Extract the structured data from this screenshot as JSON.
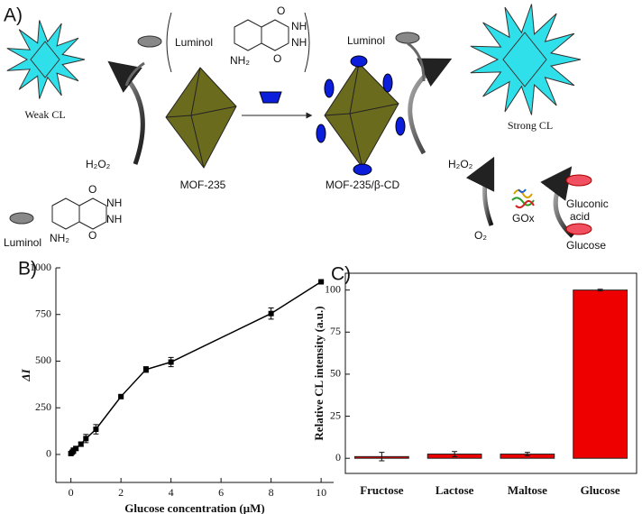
{
  "diagram": {
    "panel": "A)",
    "luminol_top_left": "Luminol",
    "luminol_top_right": "Luminol",
    "luminol_bottom": "Luminol",
    "weak": "Weak CL",
    "strong": "Strong CL",
    "h2o2_left": "H₂O₂",
    "h2o2_right": "H₂O₂",
    "mof": "MOF-235",
    "mof_cd": "MOF-235/β-CD",
    "o2": "O₂",
    "gox": "GOx",
    "gluconic_1": "Gluconic",
    "gluconic_2": "acid",
    "glucose": "Glucose",
    "structure_top": {
      "o1": "O",
      "nh1": "NH",
      "nh2": "NH",
      "o2": "O",
      "nh2_group": "NH₂"
    },
    "structure_bottom": {
      "o1": "O",
      "nh1": "NH",
      "nh2": "NH",
      "o2": "O",
      "nh2_group": "NH₂"
    }
  },
  "chart_data": [
    {
      "type": "line",
      "panel": "B)",
      "xlabel": "Glucose concentration (μM)",
      "ylabel": "ΔI",
      "color": "#000000",
      "x": [
        0,
        0.05,
        0.1,
        0.2,
        0.4,
        0.6,
        1,
        2,
        3,
        4,
        8,
        10
      ],
      "values": [
        5,
        12,
        20,
        32,
        55,
        85,
        135,
        310,
        455,
        495,
        755,
        925
      ],
      "errors": [
        10,
        10,
        15,
        10,
        12,
        22,
        25,
        5,
        15,
        25,
        30,
        5
      ],
      "xlim": [
        -0.6,
        10.5
      ],
      "xticks": [
        0,
        2,
        4,
        6,
        8,
        10
      ],
      "ylim": [
        -150,
        1000
      ],
      "yticks": [
        0,
        250,
        500,
        750,
        1000
      ]
    },
    {
      "type": "bar",
      "panel": "C)",
      "ylabel": "Relative CL intensity (a.u.)",
      "color": "#ee0000",
      "categories": [
        "Fructose",
        "Lactose",
        "Maltose",
        "Glucose"
      ],
      "values": [
        1,
        2.5,
        2.5,
        100
      ],
      "errors": [
        2.5,
        1.5,
        1,
        0.5
      ],
      "ylim": [
        -9,
        110
      ],
      "yticks": [
        0,
        25,
        50,
        75,
        100
      ]
    }
  ]
}
